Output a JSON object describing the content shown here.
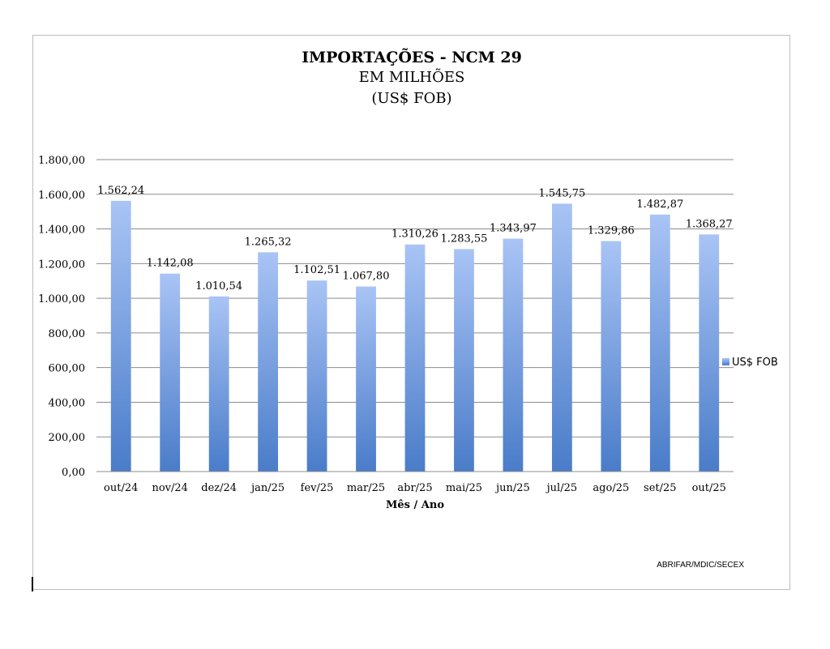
{
  "chart_data": {
    "type": "bar",
    "title": "IMPORTAÇÕES - NCM 29",
    "subtitle_lines": [
      "EM MILHÕES",
      "(US$ FOB)"
    ],
    "xlabel": "Mês / Ano",
    "ylabel": "",
    "ylim": [
      0,
      1800
    ],
    "yticks": [
      "0,00",
      "200,00",
      "400,00",
      "600,00",
      "800,00",
      "1.000,00",
      "1.200,00",
      "1.400,00",
      "1.600,00",
      "1.800,00"
    ],
    "ytick_values": [
      0,
      200,
      400,
      600,
      800,
      1000,
      1200,
      1400,
      1600,
      1800
    ],
    "grid": true,
    "legend_position": "right",
    "categories": [
      "out/24",
      "nov/24",
      "dez/24",
      "jan/25",
      "fev/25",
      "mar/25",
      "abr/25",
      "mai/25",
      "jun/25",
      "jul/25",
      "ago/25",
      "set/25",
      "out/25"
    ],
    "series": [
      {
        "name": "US$ FOB",
        "values": [
          1562.24,
          1142.08,
          1010.54,
          1265.32,
          1102.51,
          1067.8,
          1310.26,
          1283.55,
          1343.97,
          1545.75,
          1329.86,
          1482.87,
          1368.27
        ],
        "labels": [
          "1.562,24",
          "1.142,08",
          "1.010,54",
          "1.265,32",
          "1.102,51",
          "1.067,80",
          "1.310,26",
          "1.283,55",
          "1.343,97",
          "1.545,75",
          "1.329,86",
          "1.482,87",
          "1.368,27"
        ]
      }
    ],
    "colors": {
      "bar_top": "#a9c4f5",
      "bar_bottom": "#4a7cc9",
      "grid": "#8c8c8c"
    }
  },
  "source_note": "ABRIFAR/MDIC/SECEX"
}
